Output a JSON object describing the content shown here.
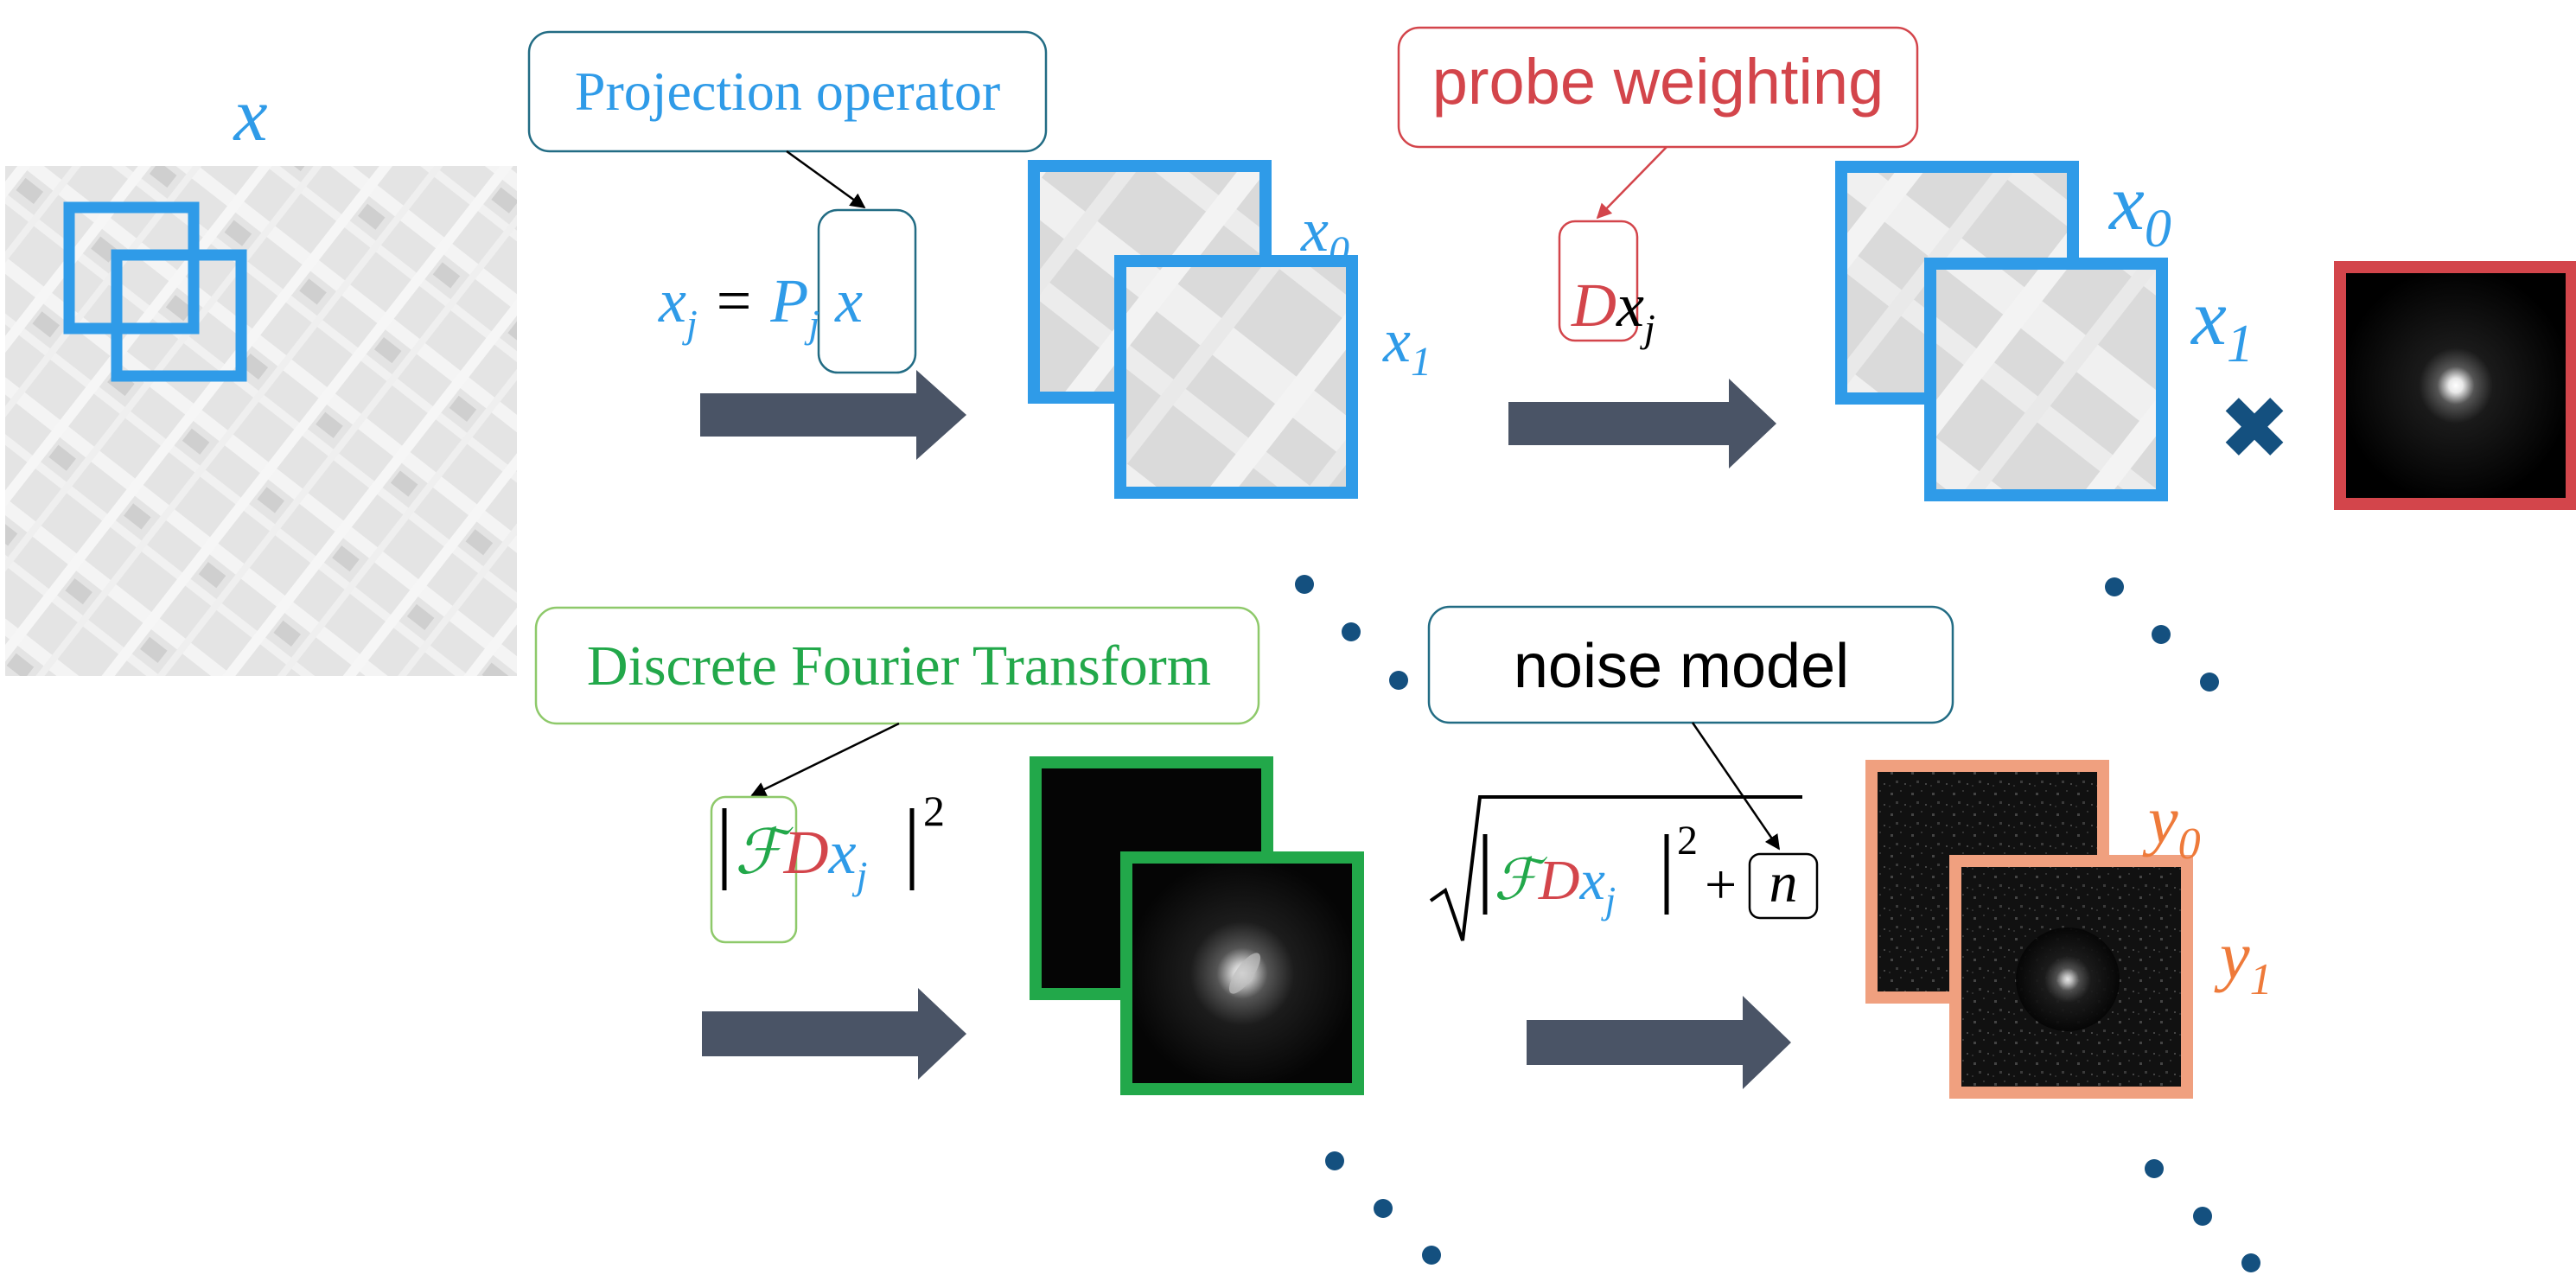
{
  "labels": {
    "input_image": "x",
    "projection_operator": "Projection operator",
    "probe_weighting": "probe weighting",
    "dft": "Discrete Fourier Transform",
    "noise_model": "noise model",
    "patch0_a": "x",
    "patch0_a_sub": "0",
    "patch1_a": "x",
    "patch1_a_sub": "1",
    "patch0_b": "x",
    "patch0_b_sub": "0",
    "patch1_b": "x",
    "patch1_b_sub": "1",
    "y0": "y",
    "y0_sub": "0",
    "y1": "y",
    "y1_sub": "1",
    "multiply_sign": "✖"
  },
  "equations": {
    "projection": {
      "lhs": "x",
      "lhs_sub": "j",
      "equals": "=",
      "op": "P",
      "op_sub": "j",
      "rhs": "x"
    },
    "weighting": {
      "op": "D",
      "var": "x",
      "var_sub": "j"
    },
    "magnitude": {
      "F": "ℱ",
      "D": "D",
      "var": "x",
      "var_sub": "j",
      "exp": "2"
    },
    "noisy": {
      "F": "ℱ",
      "D": "D",
      "var": "x",
      "var_sub": "j",
      "exp": "2",
      "plus": "+",
      "noise": "n"
    }
  },
  "colors": {
    "blue": "#2f9be8",
    "red": "#d3454b",
    "green": "#22a84a",
    "orange": "#f0a07f",
    "orange_text": "#ee7a3a",
    "teal": "#226c84",
    "arrow": "#4a5466",
    "dot": "#14507f"
  }
}
